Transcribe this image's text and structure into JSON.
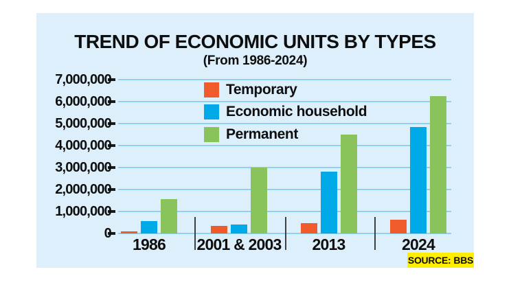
{
  "header": {
    "title": "TREND OF ECONOMIC UNITS BY TYPES",
    "subtitle": "(From 1986-2024)"
  },
  "legend": {
    "items": [
      {
        "label": "Temporary",
        "color": "#f15b2b"
      },
      {
        "label": "Economic household",
        "color": "#00a9e8"
      },
      {
        "label": "Permanent",
        "color": "#8ac35c"
      }
    ]
  },
  "source": {
    "prefix": "SOURCE:",
    "value": "BBS"
  },
  "colors": {
    "card_bg": "#ddeffa",
    "gridline": "#8dd2f0",
    "tick": "#1a1a1a",
    "separator": "#3f3f3f",
    "text": "#0e0e0e",
    "badge_bg": "#ffee00"
  },
  "chart_data": {
    "type": "bar",
    "categories": [
      "1986",
      "2001 & 2003",
      "2013",
      "2024"
    ],
    "series": [
      {
        "name": "Temporary",
        "color": "#f15b2b",
        "values": [
          90000,
          340000,
          480000,
          610000
        ]
      },
      {
        "name": "Economic household",
        "color": "#00a9e8",
        "values": [
          550000,
          400000,
          2800000,
          4850000
        ]
      },
      {
        "name": "Permanent",
        "color": "#8ac35c",
        "values": [
          1550000,
          3000000,
          4500000,
          6250000
        ]
      }
    ],
    "title": "TREND OF ECONOMIC UNITS BY TYPES",
    "subtitle": "(From 1986-2024)",
    "xlabel": "",
    "ylabel": "",
    "ylim": [
      0,
      7000000
    ],
    "ytick_step": 1000000,
    "ytick_labels": [
      "0",
      "1,000,000",
      "2,000,000",
      "3,000,000",
      "4,000,000",
      "5,000,000",
      "6,000,000",
      "7,000,000"
    ],
    "grid": true,
    "legend_position": "inside-top-left",
    "source_note": "SOURCE: BBS"
  }
}
